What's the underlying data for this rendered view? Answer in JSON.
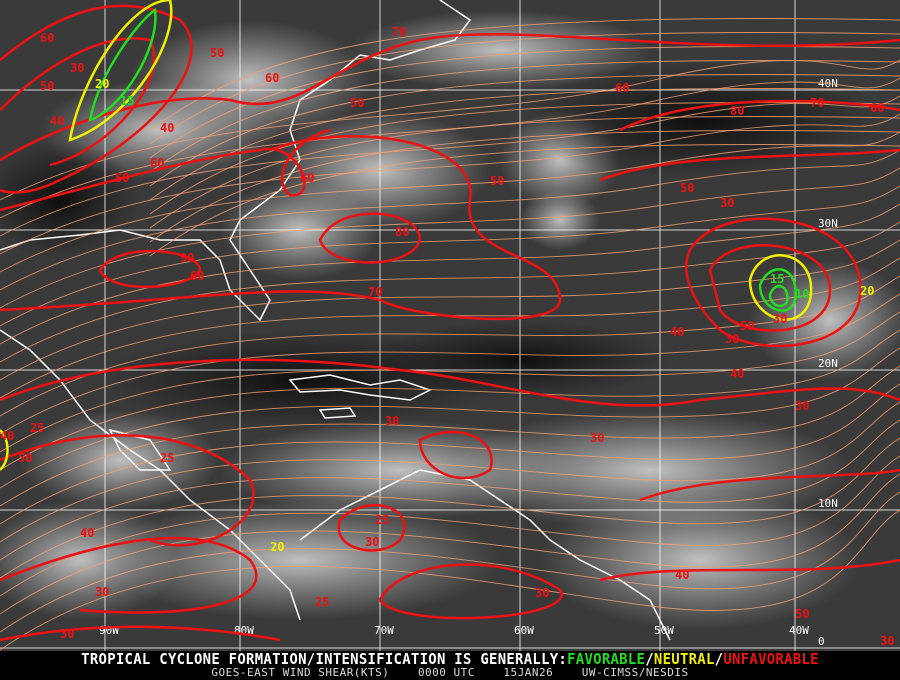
{
  "map": {
    "product": "GOES-EAST WIND SHEAR",
    "lon_labels": [
      "90W",
      "80W",
      "70W",
      "60W",
      "50W",
      "40W"
    ],
    "lat_labels": [
      "40N",
      "30N",
      "20N",
      "10N",
      "0"
    ],
    "contour_labels": [
      "70",
      "60",
      "50",
      "40",
      "30",
      "20",
      "15",
      "50",
      "60",
      "50",
      "60",
      "40",
      "90",
      "60",
      "80",
      "70",
      "60",
      "50",
      "50",
      "60",
      "80",
      "70",
      "60",
      "50",
      "30",
      "20",
      "15",
      "10",
      "30",
      "50",
      "40",
      "30",
      "40",
      "30",
      "25",
      "25",
      "30",
      "30",
      "40",
      "50",
      "40",
      "30",
      "20",
      "25",
      "30",
      "25",
      "30",
      "40",
      "50",
      "30",
      "30"
    ],
    "colors": {
      "unfavorable": "#ee1111",
      "neutral": "#f0f000",
      "favorable": "#22dd22",
      "streamline": "#f4a070",
      "coastline": "#ffffff",
      "grid": "#ffffff"
    }
  },
  "footer": {
    "headline_prefix": "TROPICAL CYCLONE FORMATION/INTENSIFICATION IS GENERALLY:",
    "favorable": "FAVORABLE",
    "sep1": "/",
    "neutral": "NEUTRAL",
    "sep2": "/",
    "unfavorable": "UNFAVORABLE",
    "product": "GOES-EAST WIND SHEAR(KTS)",
    "time": "0000 UTC",
    "date": "15JAN26",
    "source": "UW-CIMSS/NESDIS"
  }
}
